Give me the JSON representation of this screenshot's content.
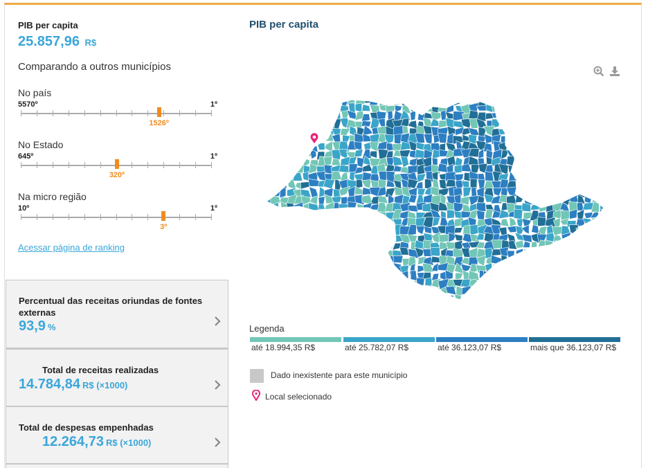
{
  "indicator": {
    "title": "PIB per capita",
    "value": "25.857,96",
    "unit": "R$"
  },
  "compare_title": "Comparando a outros municípios",
  "rankings": [
    {
      "label": "No país",
      "min": "5570º",
      "max": "1º",
      "value": "1526º",
      "position_fraction": 0.726
    },
    {
      "label": "No Estado",
      "min": "645º",
      "max": "1º",
      "value": "320º",
      "position_fraction": 0.505
    },
    {
      "label": "Na micro região",
      "min": "10º",
      "max": "1º",
      "value": "3º",
      "position_fraction": 0.75
    }
  ],
  "ranking_link": "Acessar página de ranking",
  "cards": [
    {
      "title": "Percentual das receitas oriundas de fontes externas",
      "value": "93,9",
      "unit": "%"
    },
    {
      "title": "Total de receitas realizadas",
      "value": "14.784,84",
      "unit": "R$ (×1000)"
    },
    {
      "title": "Total de despesas empenhadas",
      "value": "12.264,73",
      "unit": "R$ (×1000)"
    }
  ],
  "map": {
    "title": "PIB per capita",
    "zoom_icon": "zoom-in-icon",
    "download_icon": "download-icon",
    "colors": [
      "#72c6b6",
      "#3aa5c9",
      "#2d7fc2",
      "#216f96"
    ],
    "no_data_color": "#c8c8c8",
    "marker_color": "#e8267a"
  },
  "legend": {
    "title": "Legenda",
    "items": [
      {
        "label": "até 18.994,35 R$",
        "color": "#72c6b6"
      },
      {
        "label": "até 25.782,07 R$",
        "color": "#3aa5c9"
      },
      {
        "label": "até 36.123,07 R$",
        "color": "#2d7fc2"
      },
      {
        "label": "mais que 36.123,07 R$",
        "color": "#216f96"
      }
    ],
    "no_data": "Dado inexistente para este município",
    "selected": "Local selecionado"
  }
}
